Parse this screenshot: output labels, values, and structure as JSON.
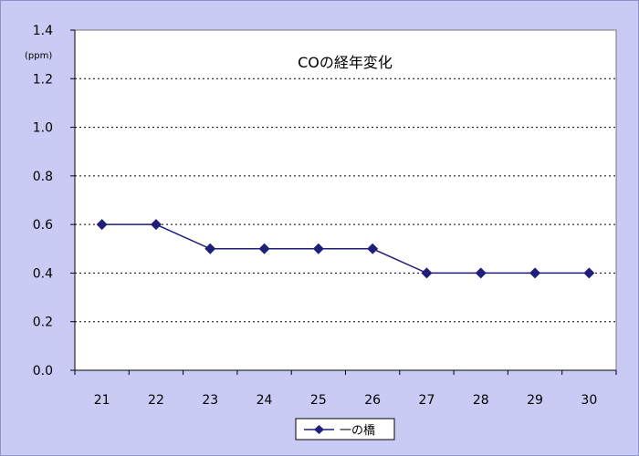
{
  "chart_data": {
    "type": "line",
    "title": "COの経年変化",
    "unit_label": "(ppm)",
    "x": [
      "21",
      "22",
      "23",
      "24",
      "25",
      "26",
      "27",
      "28",
      "29",
      "30"
    ],
    "series": [
      {
        "name": "一の橋",
        "values": [
          0.6,
          0.6,
          0.5,
          0.5,
          0.5,
          0.5,
          0.4,
          0.4,
          0.4,
          0.4
        ]
      }
    ],
    "ylim": [
      0,
      1.4
    ],
    "yticks": [
      "0.0",
      "0.2",
      "0.4",
      "0.6",
      "0.8",
      "1.0",
      "1.2",
      "1.4"
    ],
    "grid": true,
    "legend_position": "bottom-center",
    "colors": {
      "figure_background": "#c9cbf5",
      "plot_background": "#ffffff",
      "line": "#1f1f7a",
      "marker": "#1f1f7a"
    }
  }
}
